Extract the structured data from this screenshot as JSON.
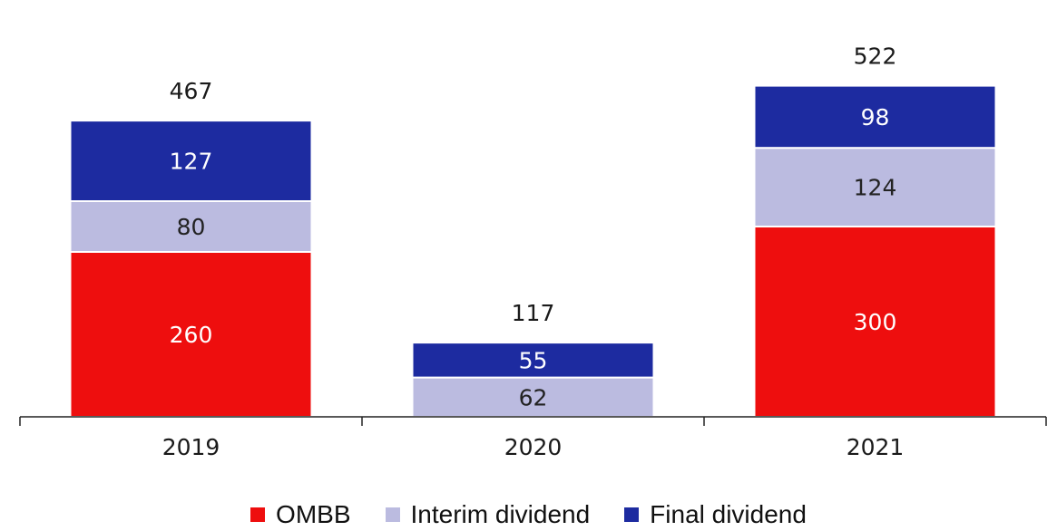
{
  "chart_data": {
    "type": "bar",
    "stacked": true,
    "categories": [
      "2019",
      "2020",
      "2021"
    ],
    "series": [
      {
        "name": "OMBB",
        "values": [
          260,
          0,
          300
        ],
        "color": "#ee0e0e",
        "label_color": "#ffffff"
      },
      {
        "name": "Interim dividend",
        "values": [
          80,
          62,
          124
        ],
        "color": "#bbbbe0",
        "label_color": "#222222"
      },
      {
        "name": "Final dividend",
        "values": [
          127,
          55,
          98
        ],
        "color": "#1d2ba0",
        "label_color": "#ffffff"
      }
    ],
    "totals": [
      467,
      117,
      522
    ],
    "legend_position": "bottom",
    "grid": false
  }
}
